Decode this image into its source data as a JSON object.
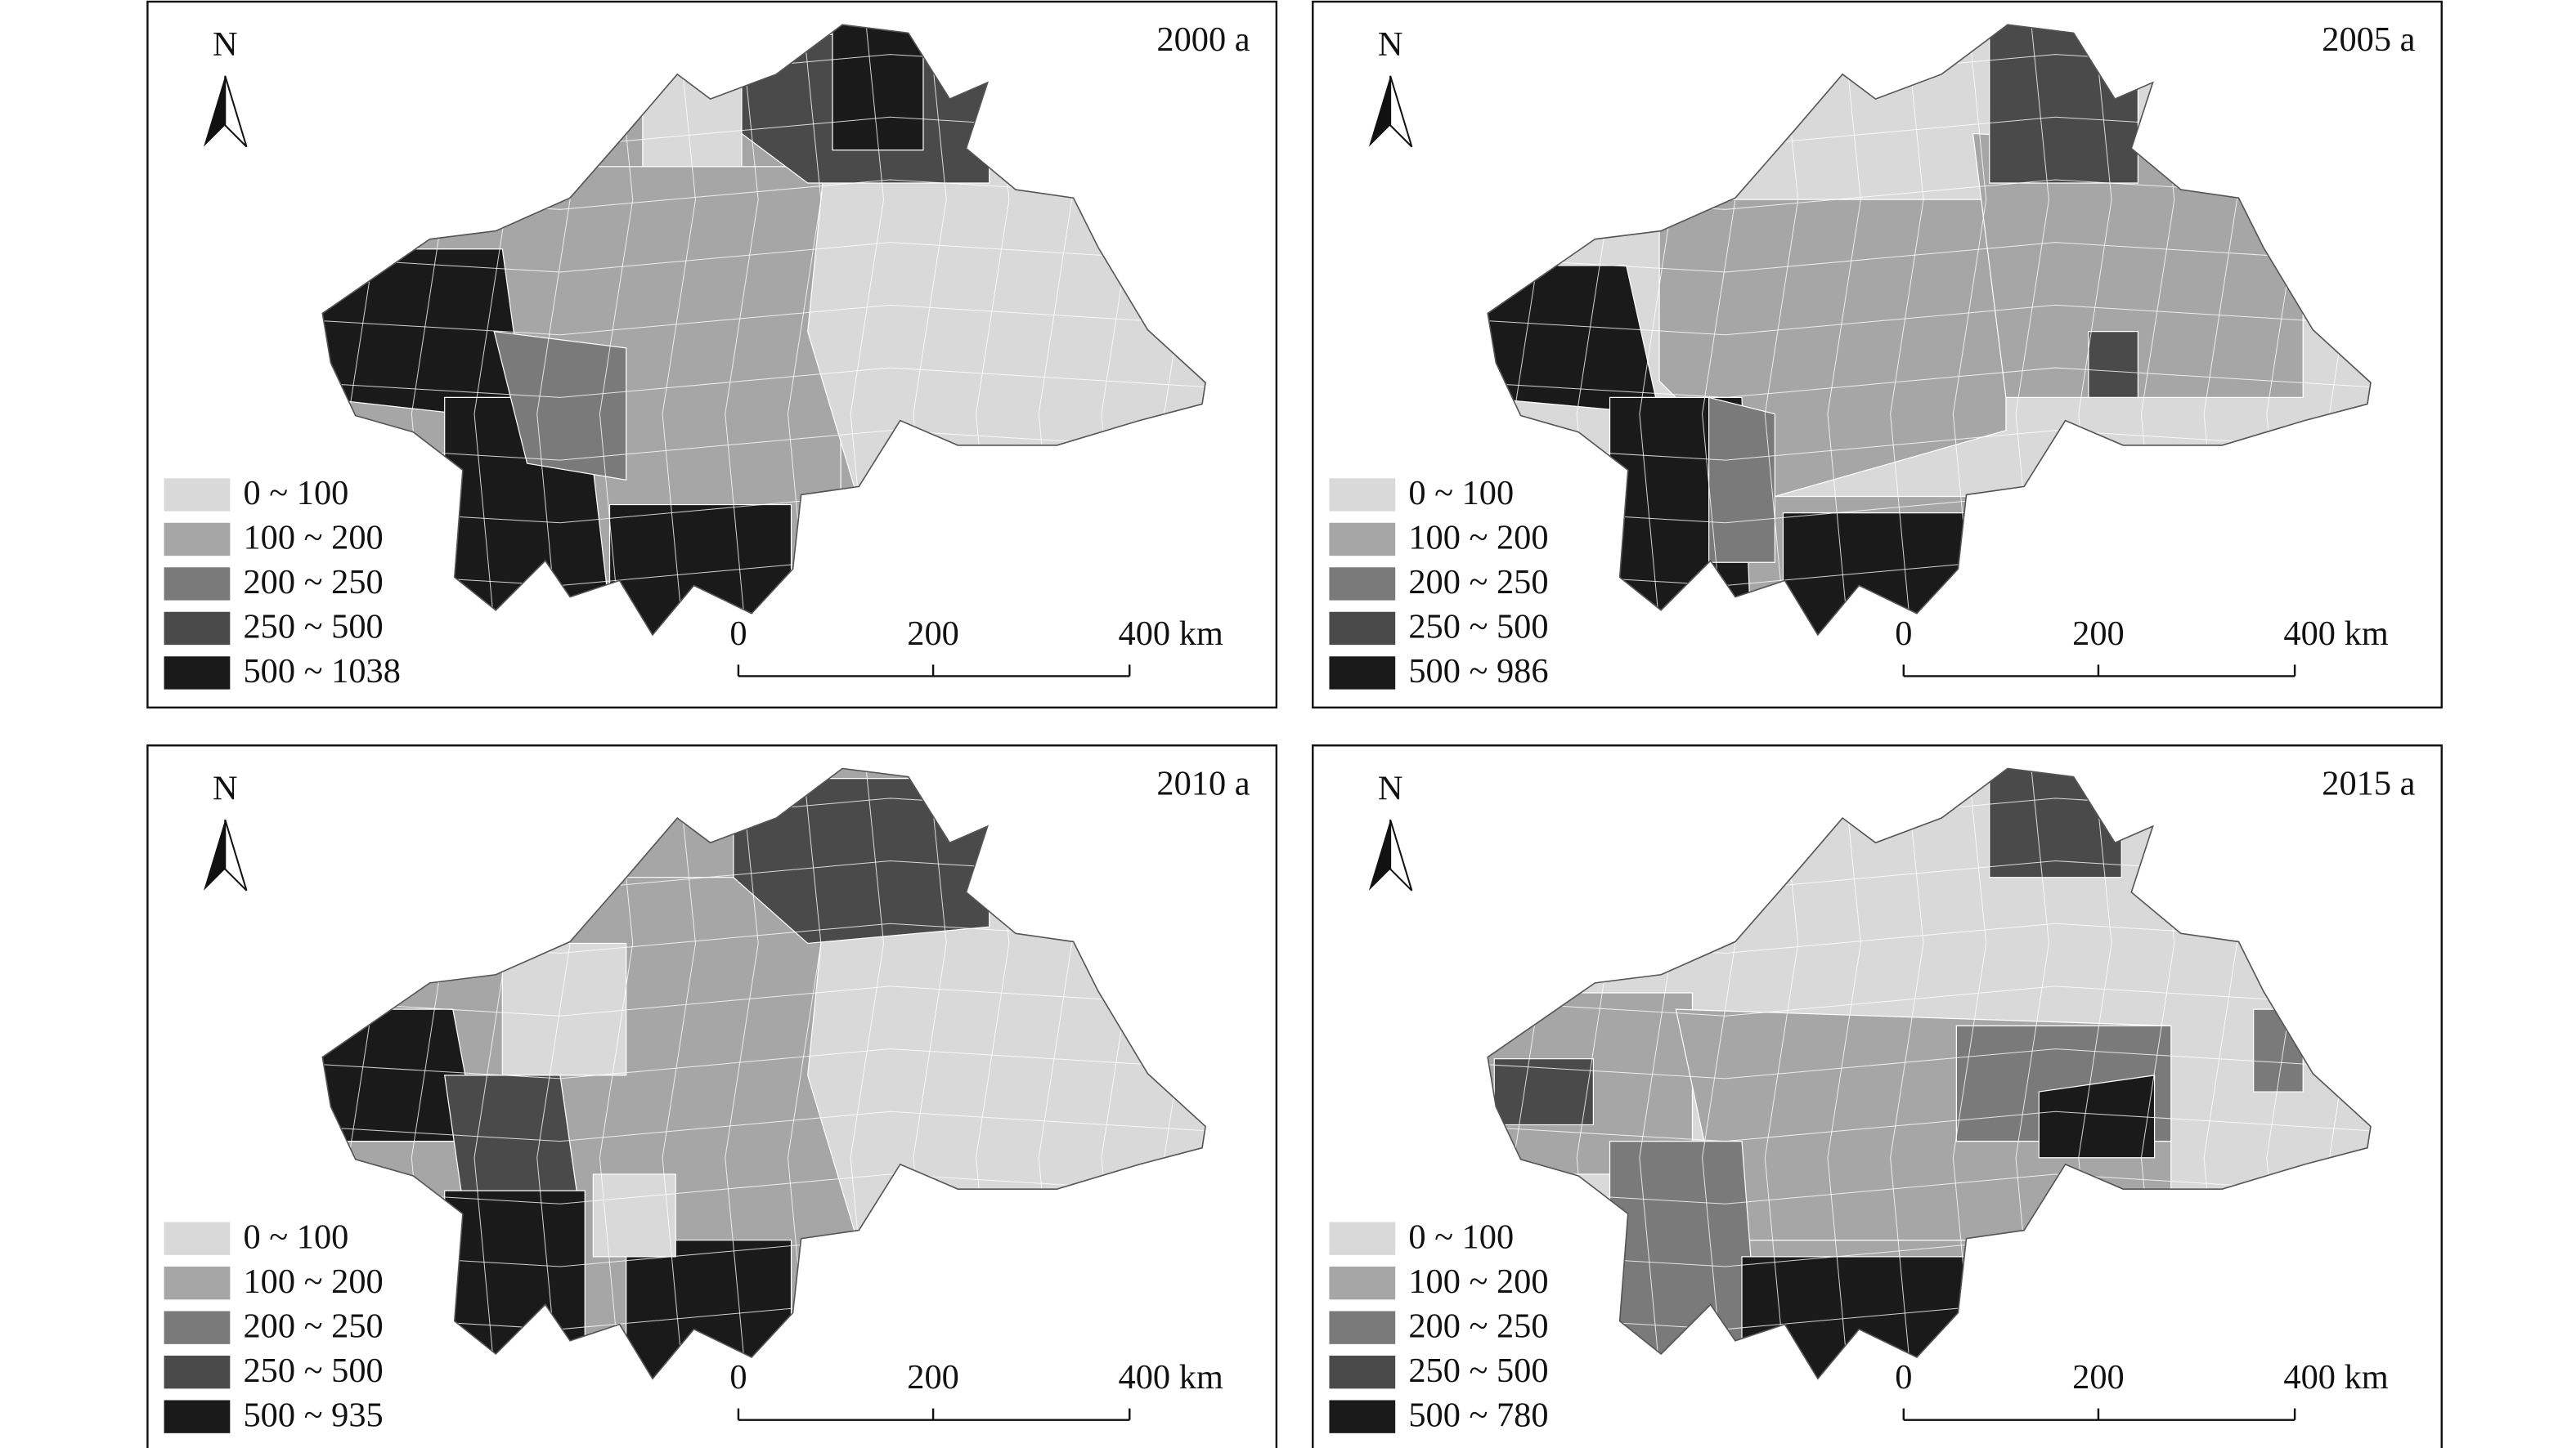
{
  "legend_colors": [
    "#d9d9d9",
    "#a6a6a6",
    "#7a7a7a",
    "#4a4a4a",
    "#1a1a1a"
  ],
  "panels": [
    {
      "title": "2000 a",
      "north": "N",
      "legend": [
        "0 ~ 100",
        "100 ~ 200",
        "200 ~ 250",
        "250 ~ 500",
        "500 ~ 1038"
      ],
      "scale_labels": [
        "0",
        "200",
        "400 km"
      ]
    },
    {
      "title": "2005 a",
      "north": "N",
      "legend": [
        "0 ~ 100",
        "100 ~ 200",
        "200 ~ 250",
        "250 ~ 500",
        "500 ~ 986"
      ],
      "scale_labels": [
        "0",
        "200",
        "400 km"
      ]
    },
    {
      "title": "2010 a",
      "north": "N",
      "legend": [
        "0 ~ 100",
        "100 ~ 200",
        "200 ~ 250",
        "250 ~ 500",
        "500 ~ 935"
      ],
      "scale_labels": [
        "0",
        "200",
        "400 km"
      ]
    },
    {
      "title": "2015 a",
      "north": "N",
      "legend": [
        "0 ~ 100",
        "100 ~ 200",
        "200 ~ 250",
        "250 ~ 500",
        "500 ~ 780"
      ],
      "scale_labels": [
        "0",
        "200",
        "400 km"
      ]
    }
  ]
}
